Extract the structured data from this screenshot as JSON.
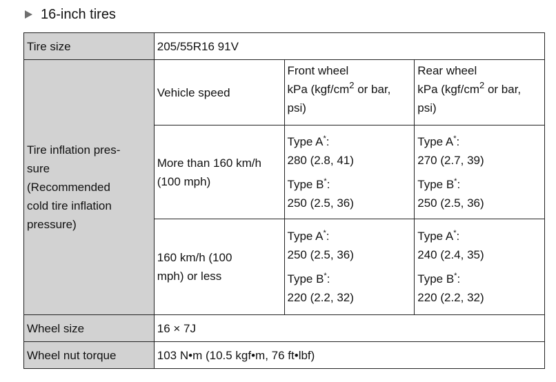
{
  "heading": {
    "icon": "triangle-right-icon",
    "title": "16-inch tires"
  },
  "table": {
    "tire_size": {
      "label": "Tire size",
      "value": "205/55R16 91V"
    },
    "pressure": {
      "label_lines": [
        "Tire inflation pres-",
        "sure",
        "(Recommended",
        "cold tire inflation",
        "pressure)"
      ],
      "header": {
        "speed": "Vehicle speed",
        "front_title": "Front wheel",
        "rear_title": "Rear wheel",
        "unit_prefix": "kPa (kgf/cm",
        "unit_sup": "2",
        "unit_suffix": " or bar,",
        "unit_line2": "psi)"
      },
      "rows": [
        {
          "speed_lines": [
            "More than 160 km/h",
            "(100 mph)"
          ],
          "front": [
            {
              "type": "Type A",
              "star": "*",
              "colon": ":",
              "value": "280 (2.8, 41)"
            },
            {
              "type": "Type B",
              "star": "*",
              "colon": ":",
              "value": "250 (2.5, 36)"
            }
          ],
          "rear": [
            {
              "type": "Type A",
              "star": "*",
              "colon": ":",
              "value": "270 (2.7, 39)"
            },
            {
              "type": "Type B",
              "star": "*",
              "colon": ":",
              "value": "250 (2.5, 36)"
            }
          ]
        },
        {
          "speed_lines": [
            "160 km/h (100",
            "mph) or less"
          ],
          "front": [
            {
              "type": "Type A",
              "star": "*",
              "colon": ":",
              "value": "250 (2.5, 36)"
            },
            {
              "type": "Type B",
              "star": "*",
              "colon": ":",
              "value": "220 (2.2, 32)"
            }
          ],
          "rear": [
            {
              "type": "Type A",
              "star": "*",
              "colon": ":",
              "value": "240 (2.4, 35)"
            },
            {
              "type": "Type B",
              "star": "*",
              "colon": ":",
              "value": "220 (2.2, 32)"
            }
          ]
        }
      ]
    },
    "wheel_size": {
      "label": "Wheel size",
      "value": "16 × 7J"
    },
    "wheel_nut_torque": {
      "label": "Wheel nut torque",
      "value": "103 N•m (10.5 kgf•m, 76 ft•lbf)"
    }
  }
}
